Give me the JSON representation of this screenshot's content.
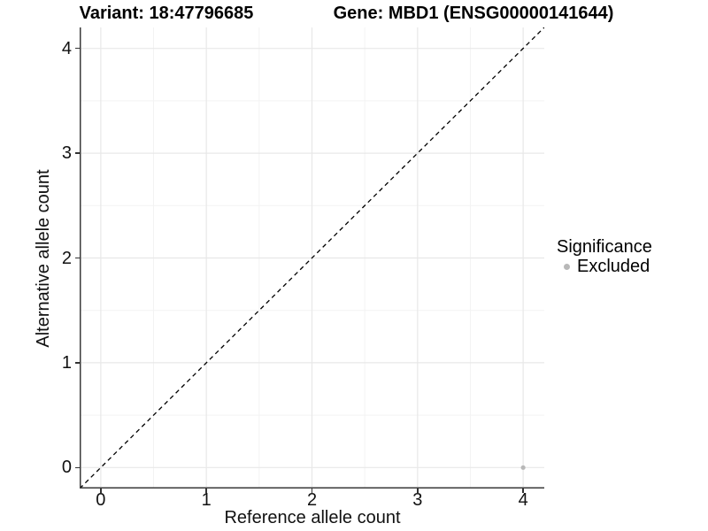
{
  "chart_data": {
    "type": "scatter",
    "title_left": "Variant: 18:47796685",
    "title_right": "Gene: MBD1 (ENSG00000141644)",
    "xlabel": "Reference allele count",
    "ylabel": "Alternative allele count",
    "xlim": [
      -0.2,
      4.2
    ],
    "ylim": [
      -0.2,
      4.2
    ],
    "xticks": [
      0,
      1,
      2,
      3,
      4
    ],
    "yticks": [
      0,
      1,
      2,
      3,
      4
    ],
    "xminor": [
      0.5,
      1.5,
      2.5,
      3.5
    ],
    "yminor": [
      0.5,
      1.5,
      2.5,
      3.5
    ],
    "grid": true,
    "legend_position": "right",
    "identity_line": {
      "from": -0.2,
      "to": 4.2,
      "style": "dashed",
      "color": "#000000"
    },
    "series": [
      {
        "name": "Excluded",
        "color": "#b8b8b8",
        "points": [
          {
            "x": 4,
            "y": 0
          }
        ]
      }
    ],
    "legend": {
      "title": "Significance",
      "items": [
        {
          "label": "Excluded",
          "color": "#b8b8b8"
        }
      ]
    },
    "colors": {
      "major_grid": "#e8e8e8",
      "minor_grid": "#f3f3f3",
      "axis_line": "#3a3a3a",
      "tick_mark": "#333333",
      "text": "#111111"
    }
  }
}
